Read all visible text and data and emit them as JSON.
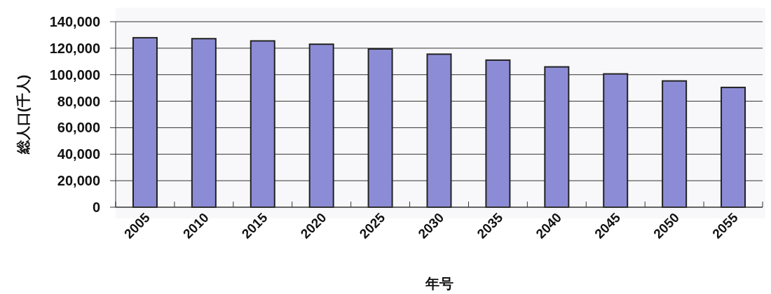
{
  "chart_data": {
    "type": "bar",
    "xlabel": "年号",
    "ylabel": "総人口(千人)",
    "categories": [
      "2005",
      "2010",
      "2015",
      "2020",
      "2025",
      "2030",
      "2035",
      "2040",
      "2045",
      "2050",
      "2055"
    ],
    "values": [
      127900,
      127200,
      125500,
      123000,
      119400,
      115500,
      111000,
      105900,
      100600,
      95300,
      90400
    ],
    "color": "#8c8cd6",
    "ylim": [
      0,
      140000
    ],
    "yticks": [
      {
        "value": 0,
        "label": "0"
      },
      {
        "value": 20000,
        "label": "20,000"
      },
      {
        "value": 40000,
        "label": "40,000"
      },
      {
        "value": 60000,
        "label": "60,000"
      },
      {
        "value": 80000,
        "label": "80,000"
      },
      {
        "value": 100000,
        "label": "100,000"
      },
      {
        "value": 120000,
        "label": "120,000"
      },
      {
        "value": 140000,
        "label": "140,000"
      }
    ],
    "grid": "y"
  }
}
